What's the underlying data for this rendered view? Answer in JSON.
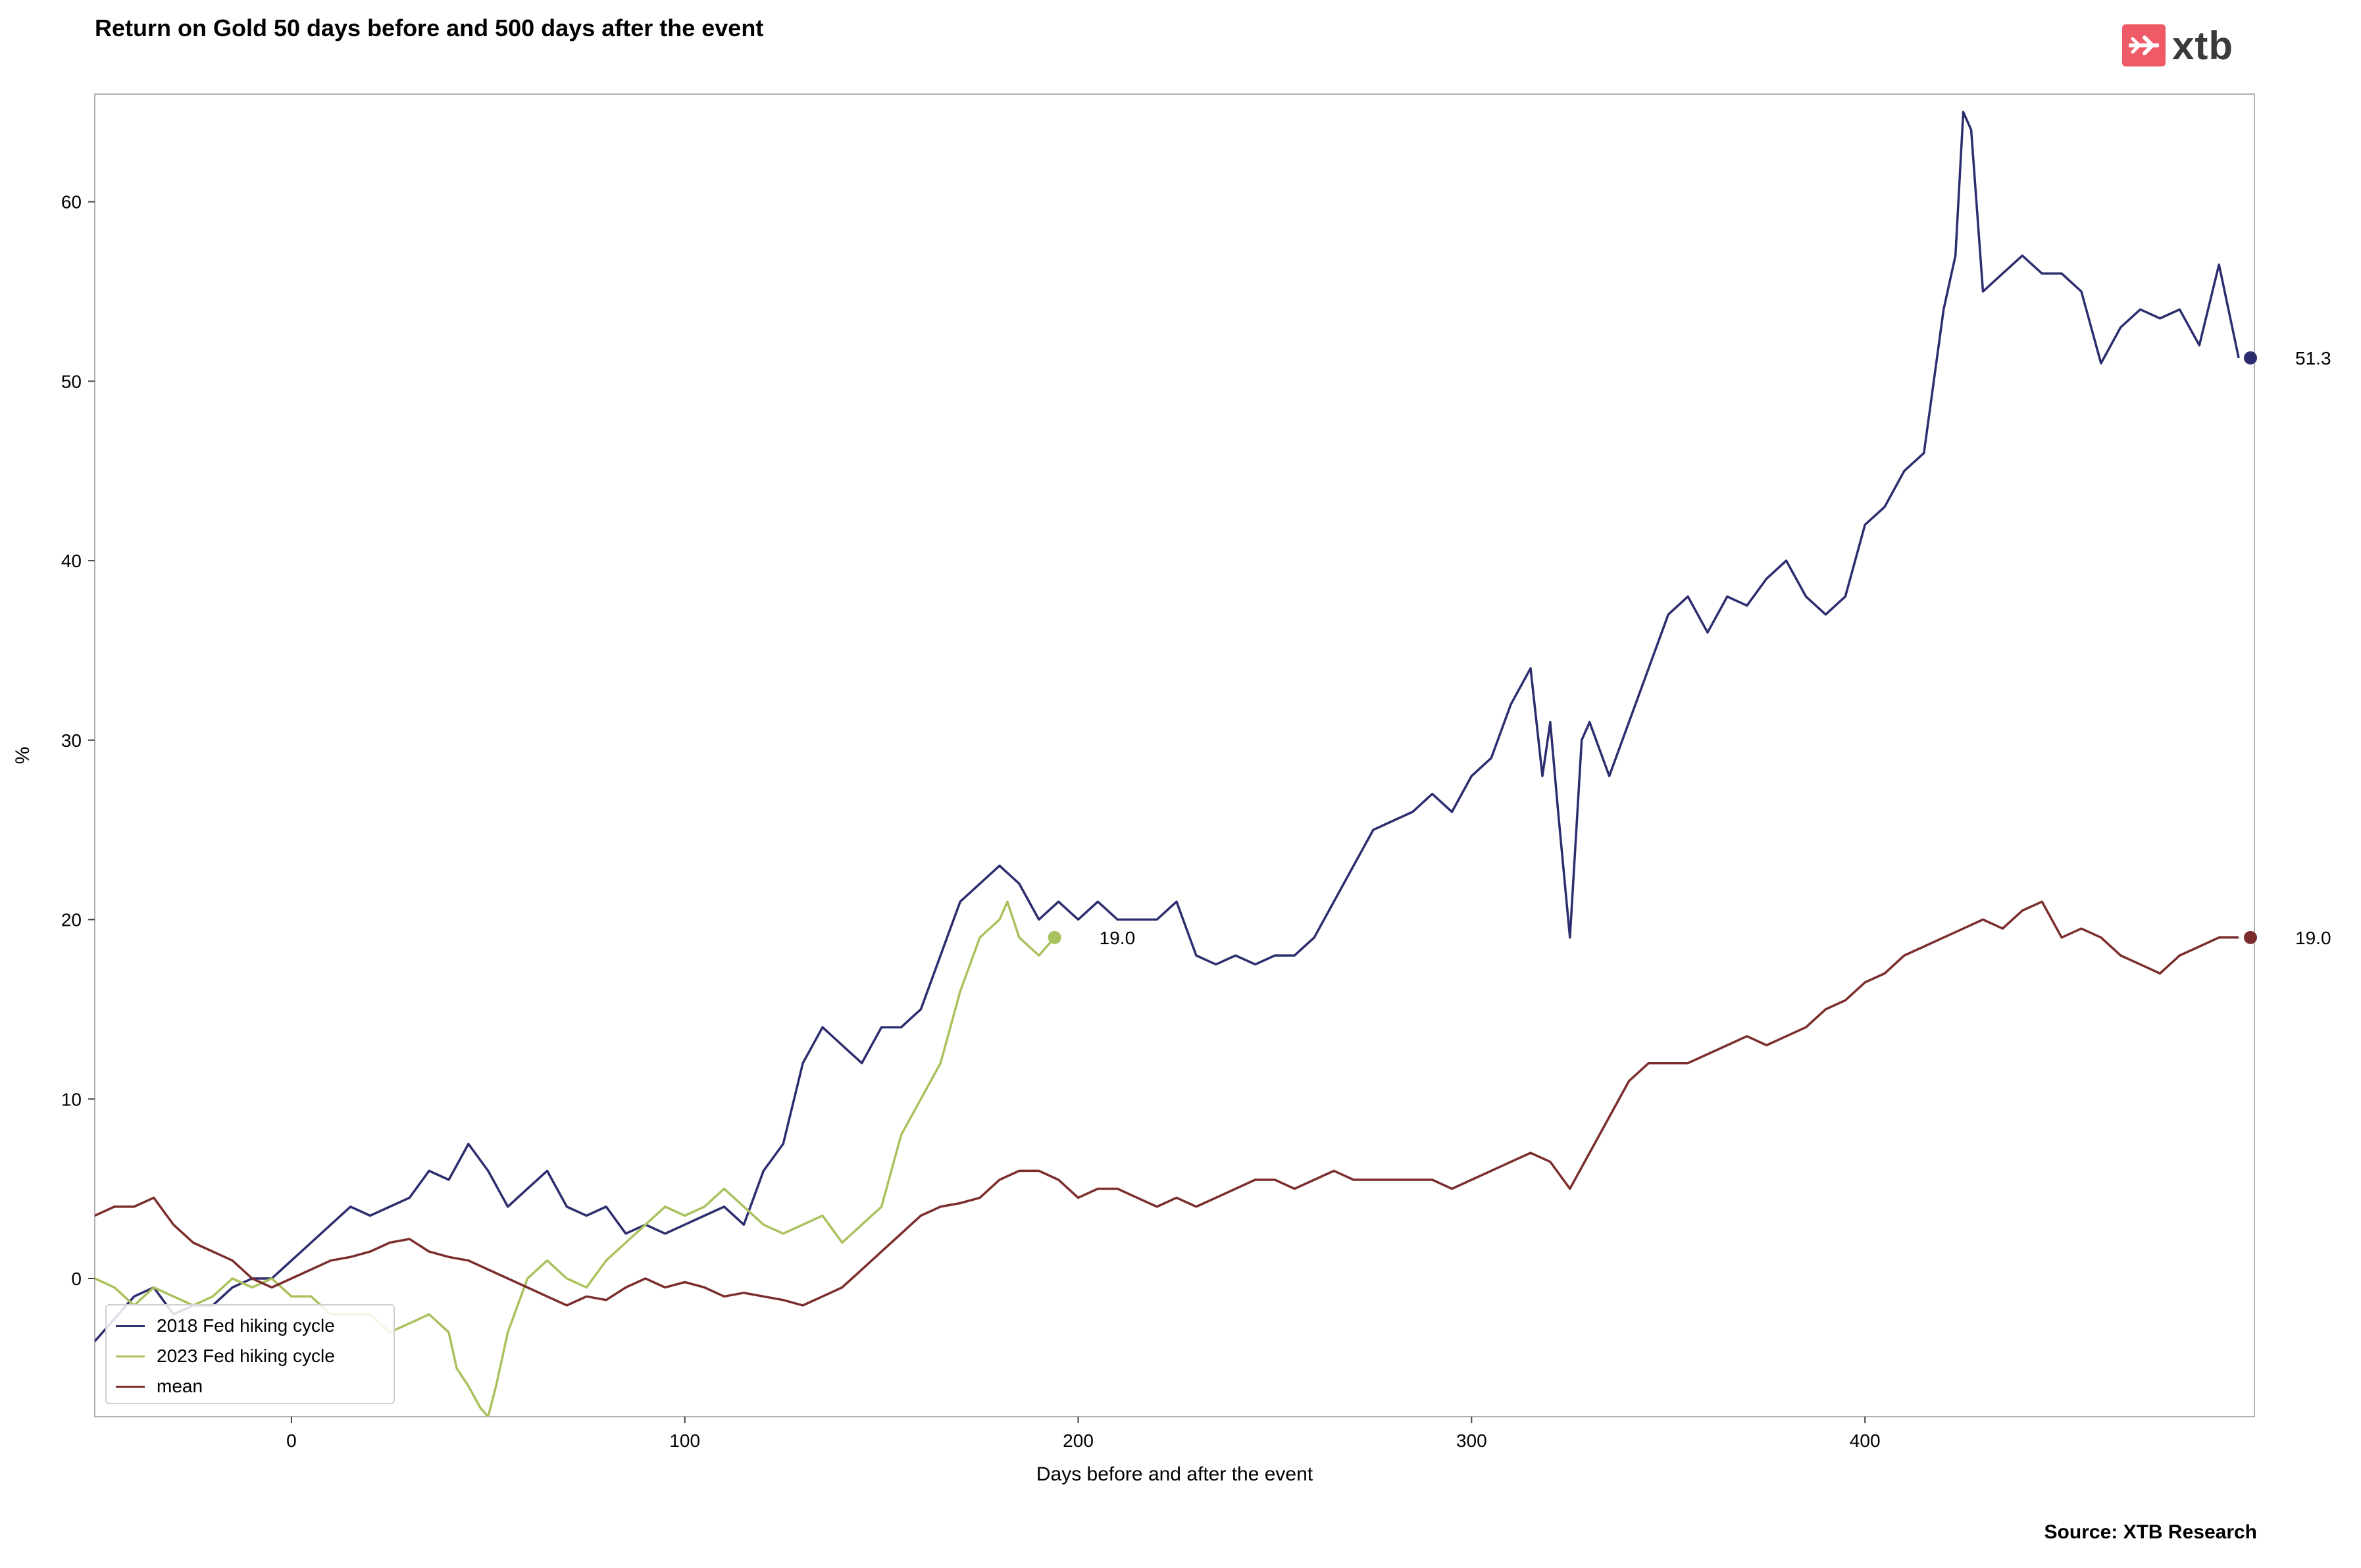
{
  "header": {
    "title": "Return on Gold 50 days before and 500 days after the event"
  },
  "logo": {
    "text": "xtb",
    "color": "#ee5b66"
  },
  "footer": {
    "source": "Source: XTB Research"
  },
  "chart_data": {
    "type": "line",
    "title": "Return on Gold 50 days before and 500 days after the event",
    "xlabel": "Days before and after the event",
    "ylabel": "%",
    "xlim": [
      -50,
      499
    ],
    "ylim": [
      -7.7,
      66
    ],
    "xticks": [
      0,
      100,
      200,
      300,
      400
    ],
    "yticks": [
      0,
      10,
      20,
      30,
      40,
      50,
      60
    ],
    "grid": false,
    "legend_position": "bottom-left",
    "series": [
      {
        "name": "2018 Fed hiking cycle",
        "color": "#2b2d6e",
        "x": [
          -50,
          -40,
          -35,
          -30,
          -25,
          -20,
          -15,
          -10,
          -5,
          0,
          5,
          10,
          15,
          20,
          25,
          30,
          35,
          40,
          45,
          50,
          55,
          60,
          65,
          70,
          75,
          80,
          85,
          90,
          95,
          100,
          105,
          110,
          115,
          120,
          125,
          130,
          135,
          140,
          145,
          150,
          155,
          160,
          165,
          170,
          175,
          180,
          185,
          190,
          195,
          200,
          205,
          210,
          215,
          220,
          225,
          230,
          235,
          240,
          245,
          250,
          255,
          260,
          265,
          270,
          275,
          280,
          285,
          290,
          295,
          300,
          305,
          310,
          315,
          318,
          320,
          322,
          325,
          328,
          330,
          335,
          340,
          345,
          350,
          355,
          360,
          365,
          370,
          375,
          380,
          385,
          390,
          395,
          400,
          405,
          410,
          415,
          420,
          423,
          425,
          427,
          430,
          435,
          440,
          445,
          450,
          455,
          460,
          465,
          470,
          475,
          480,
          485,
          490,
          495
        ],
        "y": [
          -3.5,
          -1,
          -0.5,
          -2,
          -1.5,
          -1.5,
          -0.5,
          0,
          0,
          1,
          2,
          3,
          4,
          3.5,
          4,
          4.5,
          6,
          5.5,
          7.5,
          6,
          4,
          5,
          6,
          4,
          3.5,
          4,
          2.5,
          3,
          2.5,
          3,
          3.5,
          4,
          3,
          6,
          7.5,
          12,
          14,
          13,
          12,
          14,
          14,
          15,
          18,
          21,
          22,
          23,
          22,
          20,
          21,
          20,
          21,
          20,
          20,
          20,
          21,
          18,
          17.5,
          18,
          17.5,
          18,
          18,
          19,
          21,
          23,
          25,
          25.5,
          26,
          27,
          26,
          28,
          29,
          32,
          34,
          28,
          31,
          26,
          19,
          30,
          31,
          28,
          31,
          34,
          37,
          38,
          36,
          38,
          37.5,
          39,
          40,
          38,
          37,
          38,
          42,
          43,
          45,
          46,
          54,
          57,
          65,
          64,
          55,
          56,
          57,
          56,
          56,
          55,
          51,
          53,
          54,
          53.5,
          54,
          52,
          56.5,
          51.3
        ]
      },
      {
        "name": "2023 Fed hiking cycle",
        "color": "#a9c25d",
        "x": [
          -50,
          -45,
          -40,
          -35,
          -30,
          -25,
          -20,
          -15,
          -10,
          -5,
          0,
          5,
          10,
          15,
          20,
          25,
          30,
          35,
          40,
          42,
          45,
          48,
          50,
          52,
          55,
          60,
          65,
          70,
          75,
          80,
          85,
          90,
          95,
          100,
          105,
          110,
          115,
          120,
          125,
          130,
          135,
          140,
          145,
          150,
          155,
          160,
          165,
          170,
          175,
          180,
          182,
          185,
          190,
          194
        ],
        "y": [
          0,
          -0.5,
          -1.5,
          -0.5,
          -1,
          -1.5,
          -1,
          0,
          -0.5,
          0,
          -1,
          -1,
          -2,
          -2,
          -2,
          -3,
          -2.5,
          -2,
          -3,
          -5,
          -6,
          -7.2,
          -7.7,
          -6,
          -3,
          0,
          1,
          0,
          -0.5,
          1,
          2,
          3,
          4,
          3.5,
          4,
          5,
          4,
          3,
          2.5,
          3,
          3.5,
          2,
          3,
          4,
          8,
          10,
          12,
          16,
          19,
          20,
          21,
          19,
          18,
          19
        ]
      },
      {
        "name": "mean",
        "color": "#7b2d2d",
        "x": [
          -50,
          -45,
          -40,
          -35,
          -30,
          -25,
          -20,
          -15,
          -10,
          -5,
          0,
          5,
          10,
          15,
          20,
          25,
          30,
          35,
          40,
          45,
          50,
          55,
          60,
          65,
          70,
          75,
          80,
          85,
          90,
          95,
          100,
          105,
          110,
          115,
          120,
          125,
          130,
          135,
          140,
          145,
          150,
          155,
          160,
          165,
          170,
          175,
          180,
          185,
          190,
          195,
          200,
          205,
          210,
          215,
          220,
          225,
          230,
          235,
          240,
          245,
          250,
          255,
          260,
          265,
          270,
          275,
          280,
          285,
          290,
          295,
          300,
          305,
          310,
          315,
          320,
          325,
          330,
          335,
          340,
          345,
          350,
          355,
          360,
          365,
          370,
          375,
          380,
          385,
          390,
          395,
          400,
          405,
          410,
          415,
          420,
          425,
          430,
          435,
          440,
          445,
          450,
          455,
          460,
          465,
          470,
          475,
          480,
          485,
          490,
          495
        ],
        "y": [
          3.5,
          4,
          4,
          4.5,
          3,
          2,
          1.5,
          1,
          0,
          -0.5,
          0,
          0.5,
          1,
          1.2,
          1.5,
          2,
          2.2,
          1.5,
          1.2,
          1,
          0.5,
          0,
          -0.5,
          -1,
          -1.5,
          -1,
          -1.2,
          -0.5,
          0,
          -0.5,
          -0.2,
          -0.5,
          -1,
          -0.8,
          -1,
          -1.2,
          -1.5,
          -1,
          -0.5,
          0.5,
          1.5,
          2.5,
          3.5,
          4,
          4.2,
          4.5,
          5.5,
          6,
          6,
          5.5,
          4.5,
          5,
          5,
          4.5,
          4,
          4.5,
          4,
          4.5,
          5,
          5.5,
          5.5,
          5,
          5.5,
          6,
          5.5,
          5.5,
          5.5,
          5.5,
          5.5,
          5,
          5.5,
          6,
          6.5,
          7,
          6.5,
          5,
          7,
          9,
          11,
          12,
          12,
          12,
          12.5,
          13,
          13.5,
          13,
          13.5,
          14,
          15,
          15.5,
          16.5,
          17,
          18,
          18.5,
          19,
          19.5,
          20,
          19.5,
          20.5,
          21,
          19,
          19.5,
          19,
          18,
          17.5,
          17,
          18,
          18.5,
          19,
          19
        ]
      }
    ],
    "end_labels": [
      {
        "series": "2018 Fed hiking cycle",
        "x": 498,
        "y": 51.3,
        "text": "51.3"
      },
      {
        "series": "2023 Fed hiking cycle",
        "x": 194,
        "y": 19.0,
        "text": "19.0"
      },
      {
        "series": "mean",
        "x": 498,
        "y": 19.0,
        "text": "19.0"
      }
    ]
  }
}
